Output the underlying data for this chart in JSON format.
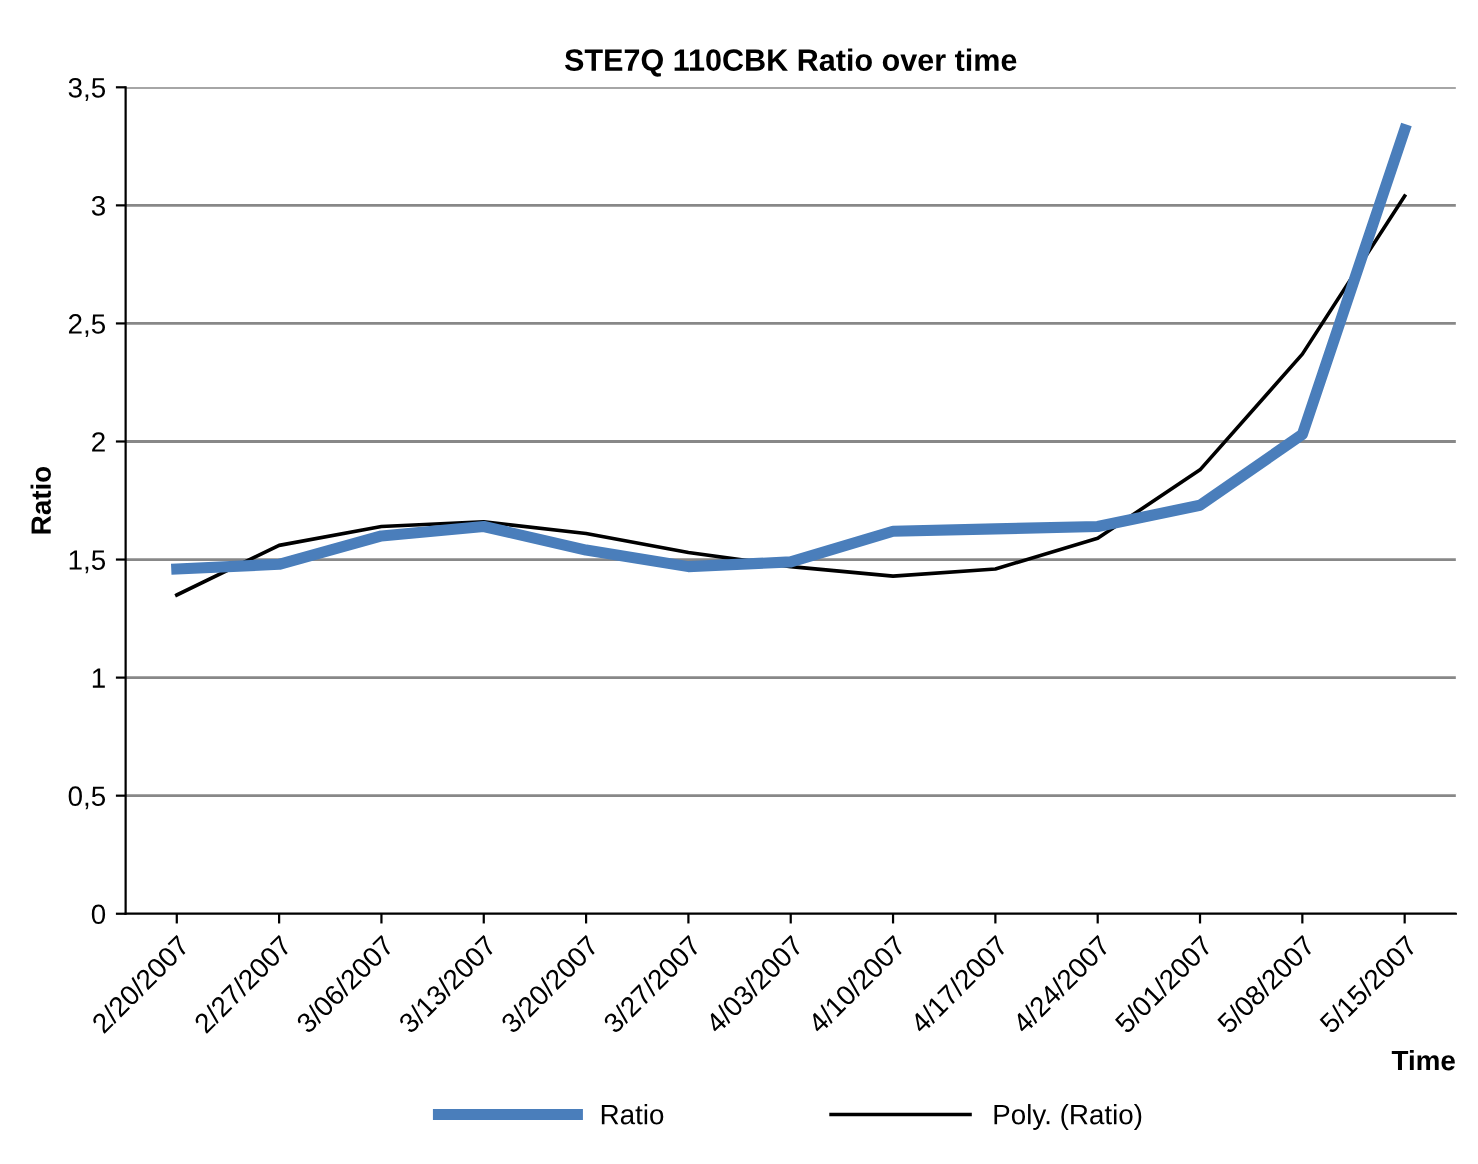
{
  "chart_data": {
    "type": "line",
    "title": "STE7Q 110CBK Ratio over time",
    "xlabel": "Time",
    "ylabel": "Ratio",
    "categories": [
      "2/20/2007",
      "2/27/2007",
      "3/06/2007",
      "3/13/2007",
      "3/20/2007",
      "3/27/2007",
      "4/03/2007",
      "4/10/2007",
      "4/17/2007",
      "4/24/2007",
      "5/01/2007",
      "5/08/2007",
      "5/15/2007"
    ],
    "series": [
      {
        "name": "Ratio",
        "color": "#4a7ebb",
        "values": [
          1.46,
          1.48,
          1.6,
          1.64,
          1.54,
          1.47,
          1.49,
          1.62,
          1.63,
          1.64,
          1.73,
          2.03,
          3.32
        ]
      },
      {
        "name": "Poly. (Ratio)",
        "color": "#000000",
        "values": [
          1.35,
          1.56,
          1.64,
          1.66,
          1.61,
          1.53,
          1.47,
          1.43,
          1.46,
          1.59,
          1.88,
          2.37,
          3.04
        ]
      }
    ],
    "ylim": [
      0,
      3.5
    ],
    "yticks": [
      0,
      {
        "value": 0.5,
        "label": "0,5"
      },
      1,
      {
        "value": 1.5,
        "label": "1,5"
      },
      2,
      {
        "value": 2.5,
        "label": "2,5"
      },
      3,
      {
        "value": 3.5,
        "label": "3,5"
      }
    ],
    "grid": "y",
    "legend": "bottom",
    "marker": "none",
    "line_style": "solid"
  }
}
